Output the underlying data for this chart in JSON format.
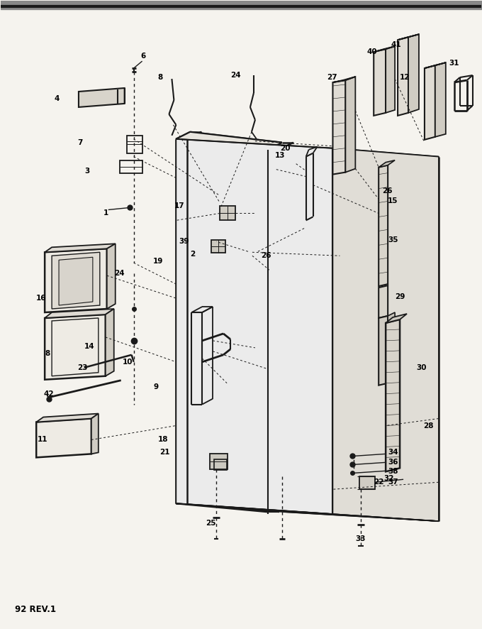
{
  "footer": "92 REV.1",
  "bg": "#f5f3ee",
  "lc": "#1a1a1a",
  "fig_w": 6.8,
  "fig_h": 8.86,
  "dpi": 100
}
